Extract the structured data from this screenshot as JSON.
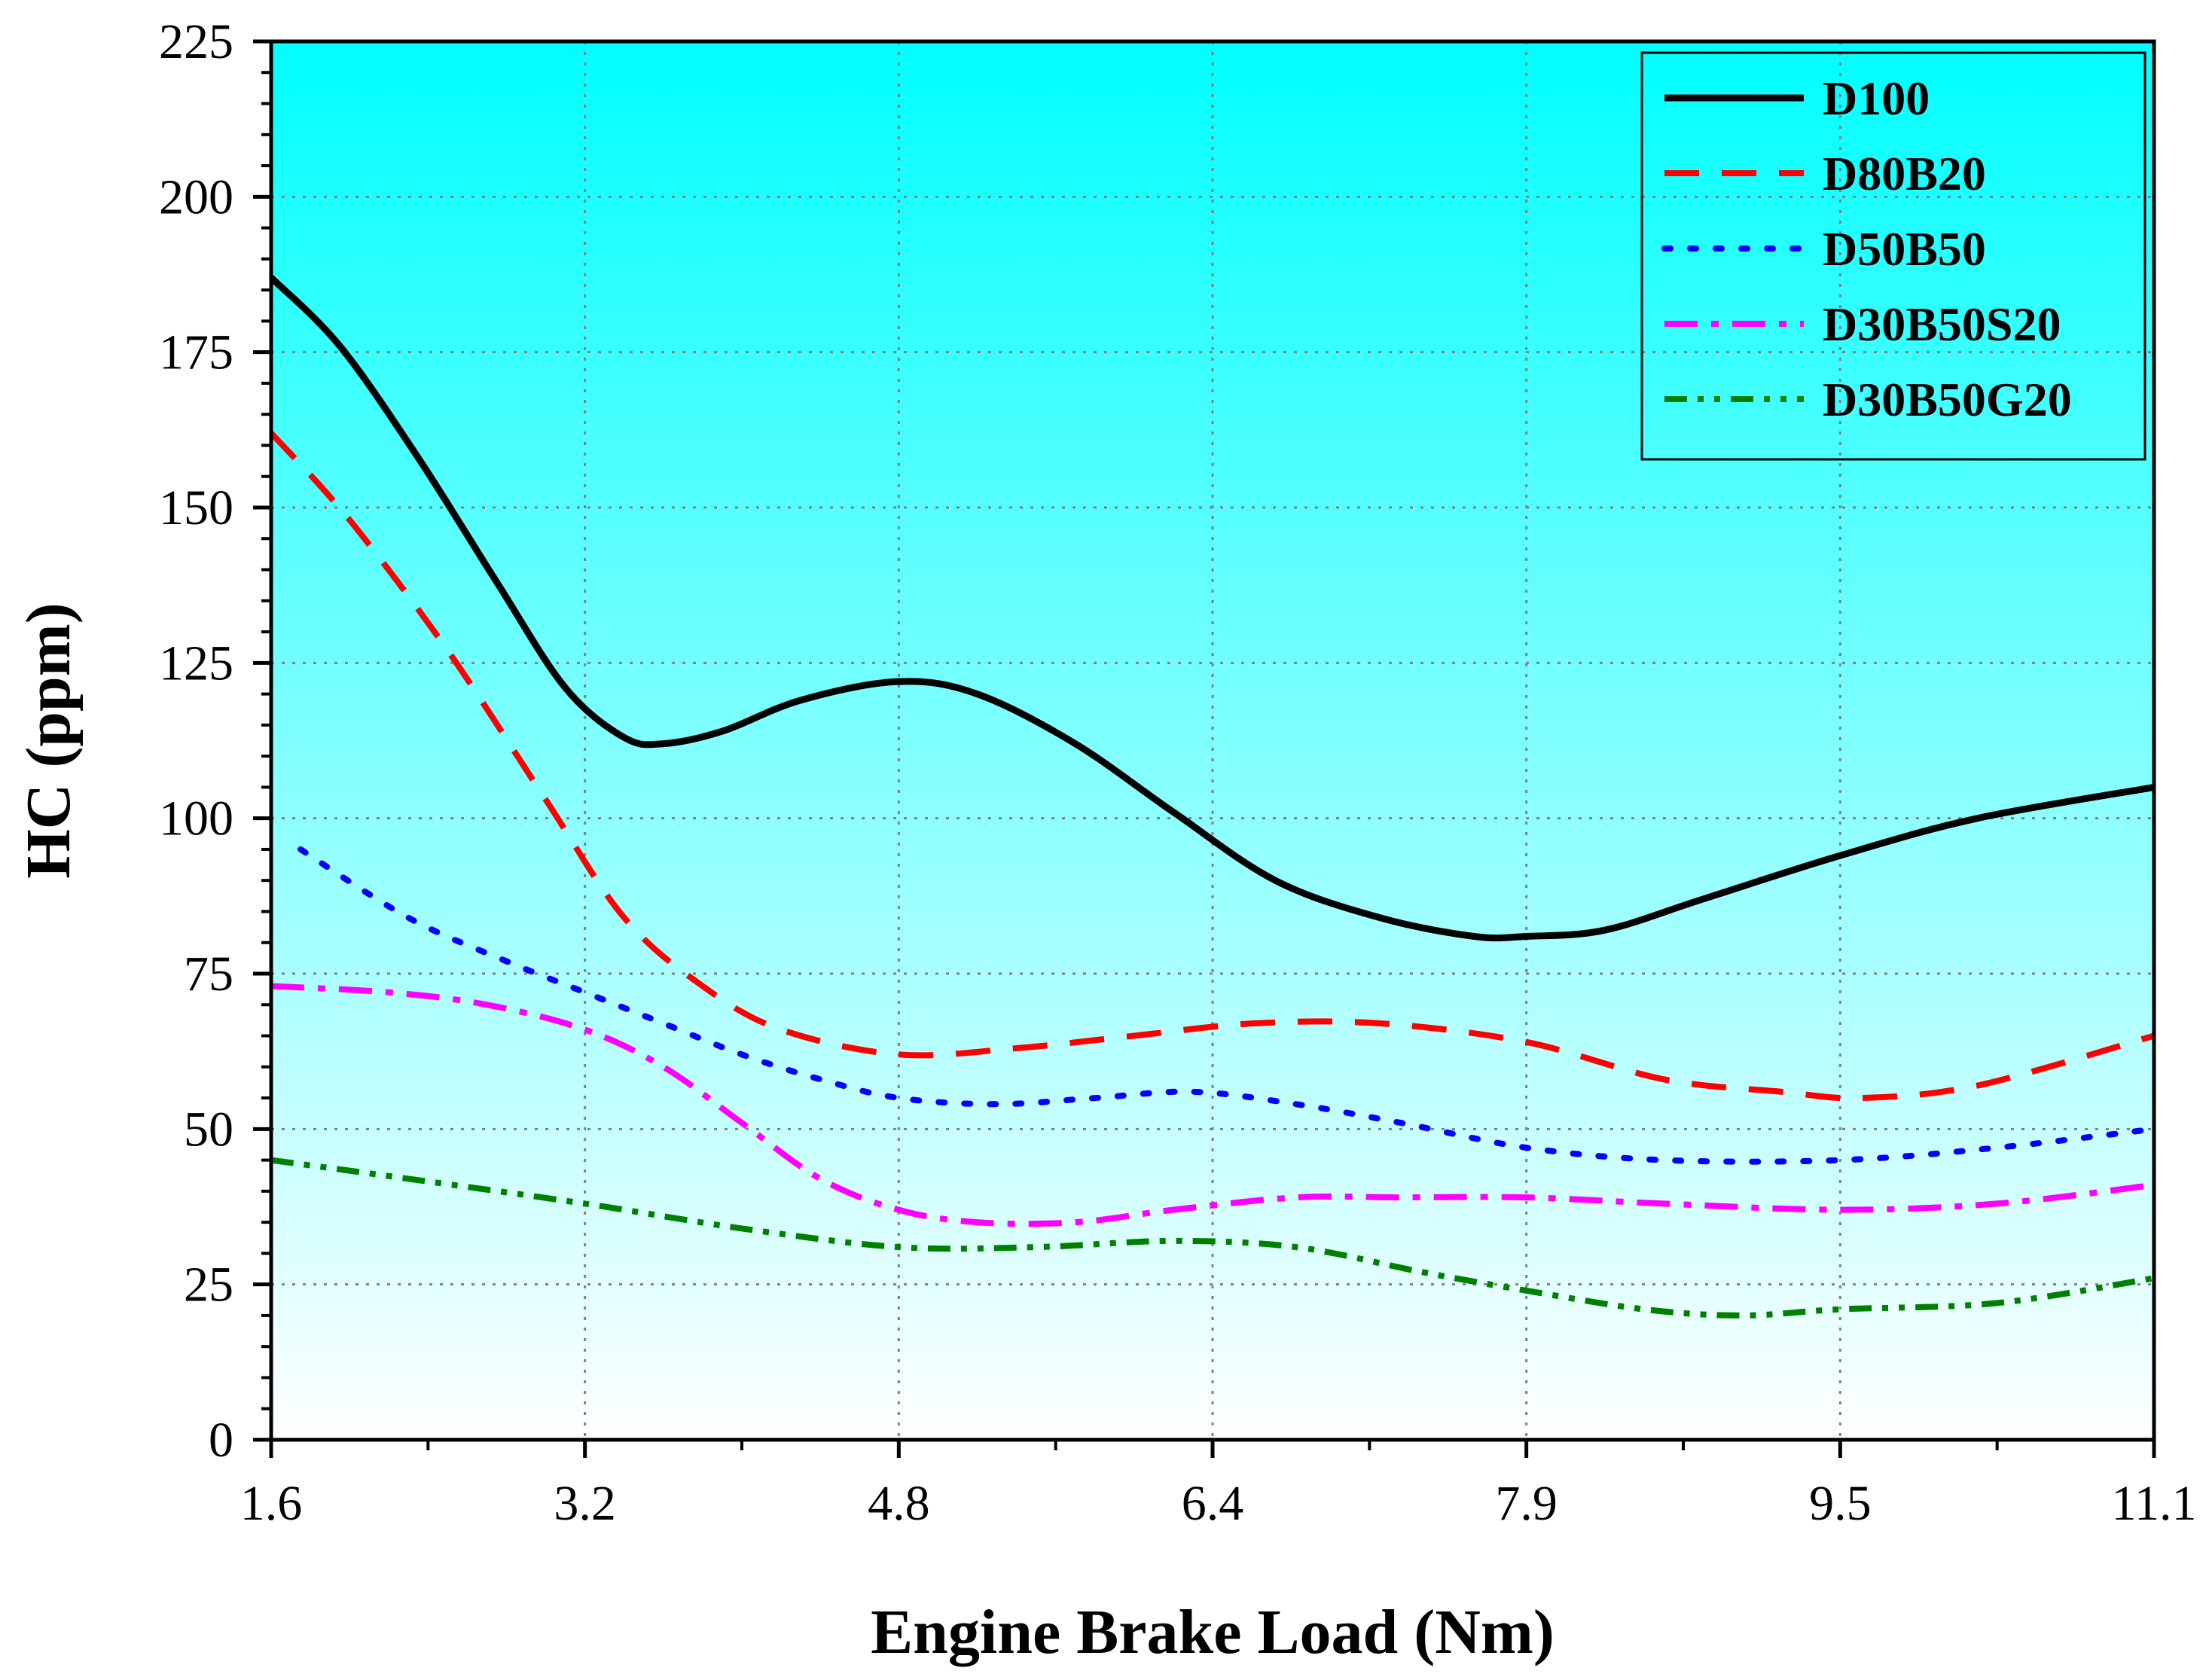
{
  "chart_data": {
    "type": "line",
    "xlabel": "Engine Brake Load (Nm)",
    "ylabel": "HC (ppm)",
    "x": [
      1.6,
      3.2,
      4.8,
      6.4,
      7.9,
      9.5,
      11.1
    ],
    "x_tick_labels": [
      "1.6",
      "3.2",
      "4.8",
      "6.4",
      "7.9",
      "9.5",
      "11.1"
    ],
    "ylim": [
      0,
      225
    ],
    "y_ticks": [
      0,
      25,
      50,
      75,
      100,
      125,
      150,
      175,
      200,
      225
    ],
    "grid": true,
    "legend_position": "top-right",
    "background": "gradient cyan to white",
    "colors": {
      "bg_top": "#00FFFF",
      "bg_bottom": "#FFFFFF",
      "grid": "#808080"
    },
    "series": [
      {
        "name": "D100",
        "color": "#000000",
        "dash": "solid",
        "points": [
          [
            1.6,
            187
          ],
          [
            1.95,
            176
          ],
          [
            2.35,
            158
          ],
          [
            2.75,
            138
          ],
          [
            3.1,
            121
          ],
          [
            3.4,
            113
          ],
          [
            3.6,
            112
          ],
          [
            3.9,
            114
          ],
          [
            4.3,
            119
          ],
          [
            4.8,
            122
          ],
          [
            5.2,
            120
          ],
          [
            5.7,
            112
          ],
          [
            6.2,
            101
          ],
          [
            6.7,
            90
          ],
          [
            7.2,
            84
          ],
          [
            7.65,
            81
          ],
          [
            7.9,
            81
          ],
          [
            8.3,
            82
          ],
          [
            8.8,
            87
          ],
          [
            9.5,
            94
          ],
          [
            10.2,
            100
          ],
          [
            11.1,
            105
          ]
        ]
      },
      {
        "name": "D80B20",
        "color": "#FF0000",
        "dash": "dashed",
        "points": [
          [
            1.6,
            162
          ],
          [
            2.0,
            148
          ],
          [
            2.5,
            127
          ],
          [
            3.0,
            103
          ],
          [
            3.4,
            84
          ],
          [
            3.8,
            73
          ],
          [
            4.2,
            66
          ],
          [
            4.8,
            62
          ],
          [
            5.4,
            63
          ],
          [
            6.0,
            65
          ],
          [
            6.6,
            67
          ],
          [
            7.2,
            67
          ],
          [
            7.9,
            64
          ],
          [
            8.6,
            58
          ],
          [
            9.2,
            56
          ],
          [
            9.6,
            55
          ],
          [
            10.2,
            57
          ],
          [
            11.1,
            65
          ]
        ]
      },
      {
        "name": "D50B50",
        "color": "#0000FF",
        "dash": "dotted",
        "points": [
          [
            1.75,
            95
          ],
          [
            2.3,
            84
          ],
          [
            2.8,
            77
          ],
          [
            3.2,
            72
          ],
          [
            3.6,
            67
          ],
          [
            4.0,
            62
          ],
          [
            4.4,
            58
          ],
          [
            4.8,
            55
          ],
          [
            5.3,
            54
          ],
          [
            5.8,
            55
          ],
          [
            6.3,
            56
          ],
          [
            6.8,
            54
          ],
          [
            7.3,
            51
          ],
          [
            7.9,
            47
          ],
          [
            8.6,
            45
          ],
          [
            9.5,
            45
          ],
          [
            10.3,
            47
          ],
          [
            11.1,
            50
          ]
        ]
      },
      {
        "name": "D30B50S20",
        "color": "#FF00FF",
        "dash": "dashdot",
        "points": [
          [
            1.6,
            73
          ],
          [
            2.2,
            72
          ],
          [
            2.7,
            70
          ],
          [
            3.2,
            66
          ],
          [
            3.6,
            60
          ],
          [
            4.0,
            51
          ],
          [
            4.4,
            42
          ],
          [
            4.8,
            37
          ],
          [
            5.2,
            35
          ],
          [
            5.7,
            35
          ],
          [
            6.2,
            37
          ],
          [
            6.8,
            39
          ],
          [
            7.3,
            39
          ],
          [
            7.9,
            39
          ],
          [
            8.6,
            38
          ],
          [
            9.5,
            37
          ],
          [
            10.3,
            38
          ],
          [
            11.1,
            41
          ]
        ]
      },
      {
        "name": "D30B50G20",
        "color": "#008000",
        "dash": "dashdotdot",
        "points": [
          [
            1.6,
            45
          ],
          [
            2.3,
            42
          ],
          [
            3.2,
            38
          ],
          [
            4.0,
            34
          ],
          [
            4.8,
            31
          ],
          [
            5.5,
            31
          ],
          [
            6.2,
            32
          ],
          [
            6.8,
            31
          ],
          [
            7.4,
            27
          ],
          [
            7.9,
            24
          ],
          [
            8.5,
            21
          ],
          [
            9.0,
            20
          ],
          [
            9.5,
            21
          ],
          [
            10.3,
            22
          ],
          [
            11.1,
            26
          ]
        ]
      }
    ]
  }
}
